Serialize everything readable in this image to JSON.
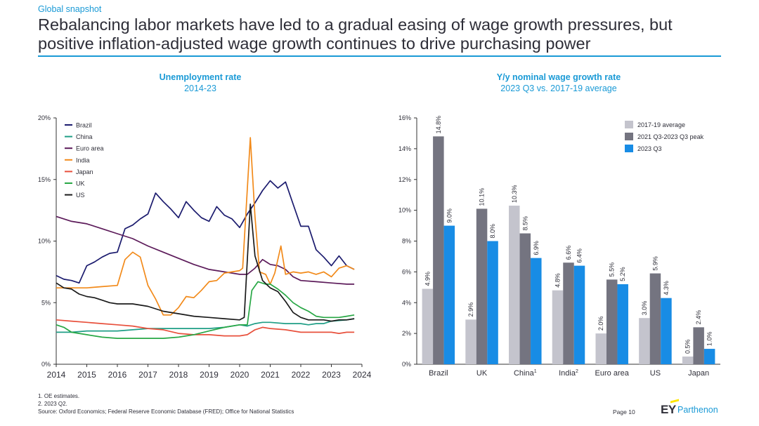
{
  "header": {
    "kicker": "Global snapshot",
    "title_line1": "Rebalancing labor markets have led to a gradual easing of wage growth pressures, but",
    "title_line2": "positive inflation-adjusted wage growth continues to drive purchasing power",
    "accent_color": "#1a9ad6"
  },
  "chart_data": [
    {
      "type": "line",
      "title": "Unemployment rate",
      "subtitle": "2014-23",
      "xlabel": "",
      "ylabel": "",
      "xlim": [
        2014,
        2024
      ],
      "ylim": [
        0,
        20
      ],
      "x_ticks": [
        "2014",
        "2015",
        "2016",
        "2017",
        "2018",
        "2019",
        "2020",
        "2021",
        "2022",
        "2023",
        "2024"
      ],
      "y_ticks": [
        "0%",
        "5%",
        "10%",
        "15%",
        "20%"
      ],
      "legend_position": "top-left",
      "series": [
        {
          "name": "Brazil",
          "color": "#1b1b6e",
          "points": [
            [
              2014,
              7.2
            ],
            [
              2014.25,
              6.9
            ],
            [
              2014.5,
              6.8
            ],
            [
              2014.75,
              6.6
            ],
            [
              2015,
              8
            ],
            [
              2015.25,
              8.3
            ],
            [
              2015.5,
              8.7
            ],
            [
              2015.75,
              9
            ],
            [
              2016,
              9.1
            ],
            [
              2016.25,
              11
            ],
            [
              2016.5,
              11.3
            ],
            [
              2016.75,
              11.8
            ],
            [
              2017,
              12.2
            ],
            [
              2017.25,
              13.9
            ],
            [
              2017.5,
              13.2
            ],
            [
              2017.75,
              12.6
            ],
            [
              2018,
              11.9
            ],
            [
              2018.25,
              13.2
            ],
            [
              2018.5,
              12.5
            ],
            [
              2018.75,
              11.9
            ],
            [
              2019,
              11.6
            ],
            [
              2019.25,
              12.8
            ],
            [
              2019.5,
              12.1
            ],
            [
              2019.75,
              11.8
            ],
            [
              2020,
              11.1
            ],
            [
              2020.25,
              12.2
            ],
            [
              2020.5,
              13.1
            ],
            [
              2020.75,
              14.1
            ],
            [
              2021,
              14.9
            ],
            [
              2021.25,
              14.3
            ],
            [
              2021.5,
              14.8
            ],
            [
              2021.75,
              13
            ],
            [
              2022,
              11.2
            ],
            [
              2022.25,
              11.2
            ],
            [
              2022.5,
              9.3
            ],
            [
              2022.75,
              8.7
            ],
            [
              2023,
              8
            ],
            [
              2023.25,
              8.8
            ],
            [
              2023.5,
              8
            ],
            [
              2023.75,
              7.7
            ]
          ]
        },
        {
          "name": "China",
          "color": "#1f9e86",
          "points": [
            [
              2014,
              2.6
            ],
            [
              2014.5,
              2.6
            ],
            [
              2015,
              2.7
            ],
            [
              2015.5,
              2.7
            ],
            [
              2016,
              2.7
            ],
            [
              2016.5,
              2.8
            ],
            [
              2017,
              2.9
            ],
            [
              2017.5,
              2.9
            ],
            [
              2018,
              2.9
            ],
            [
              2018.5,
              2.9
            ],
            [
              2019,
              2.9
            ],
            [
              2019.5,
              3
            ],
            [
              2020,
              3.2
            ],
            [
              2020.25,
              3.1
            ],
            [
              2020.5,
              3.3
            ],
            [
              2020.75,
              3.4
            ],
            [
              2021,
              3.4
            ],
            [
              2021.5,
              3.3
            ],
            [
              2022,
              3.3
            ],
            [
              2022.25,
              3.2
            ],
            [
              2022.5,
              3.3
            ],
            [
              2022.75,
              3.3
            ],
            [
              2023,
              3.5
            ],
            [
              2023.5,
              3.6
            ],
            [
              2023.75,
              3.7
            ]
          ]
        },
        {
          "name": "Euro area",
          "color": "#5c1b5a",
          "points": [
            [
              2014,
              12
            ],
            [
              2014.5,
              11.6
            ],
            [
              2015,
              11.4
            ],
            [
              2015.5,
              11
            ],
            [
              2016,
              10.6
            ],
            [
              2016.5,
              10.2
            ],
            [
              2017,
              9.6
            ],
            [
              2017.5,
              9.1
            ],
            [
              2018,
              8.6
            ],
            [
              2018.5,
              8.1
            ],
            [
              2019,
              7.7
            ],
            [
              2019.5,
              7.5
            ],
            [
              2020,
              7.3
            ],
            [
              2020.25,
              7.3
            ],
            [
              2020.5,
              7.8
            ],
            [
              2020.75,
              8.5
            ],
            [
              2021,
              8.1
            ],
            [
              2021.25,
              8
            ],
            [
              2021.5,
              7.7
            ],
            [
              2021.75,
              7.1
            ],
            [
              2022,
              6.8
            ],
            [
              2022.5,
              6.7
            ],
            [
              2023,
              6.6
            ],
            [
              2023.5,
              6.5
            ],
            [
              2023.75,
              6.5
            ]
          ]
        },
        {
          "name": "India",
          "color": "#f28a1a",
          "points": [
            [
              2014,
              6.2
            ],
            [
              2014.5,
              6.2
            ],
            [
              2015,
              6.2
            ],
            [
              2015.5,
              6.3
            ],
            [
              2016,
              6.4
            ],
            [
              2016.25,
              8.5
            ],
            [
              2016.5,
              9.1
            ],
            [
              2016.75,
              8.7
            ],
            [
              2017,
              6.4
            ],
            [
              2017.25,
              5.3
            ],
            [
              2017.5,
              4
            ],
            [
              2017.75,
              4
            ],
            [
              2018,
              4.6
            ],
            [
              2018.25,
              5.5
            ],
            [
              2018.5,
              5.4
            ],
            [
              2018.75,
              6
            ],
            [
              2019,
              6.7
            ],
            [
              2019.25,
              6.8
            ],
            [
              2019.5,
              7.4
            ],
            [
              2019.75,
              7.5
            ],
            [
              2020,
              7.6
            ],
            [
              2020.1,
              7.8
            ],
            [
              2020.35,
              18.4
            ],
            [
              2020.5,
              12
            ],
            [
              2020.65,
              7.5
            ],
            [
              2020.85,
              7.3
            ],
            [
              2021,
              6.5
            ],
            [
              2021.15,
              7.4
            ],
            [
              2021.35,
              9.6
            ],
            [
              2021.5,
              7.3
            ],
            [
              2021.75,
              7.5
            ],
            [
              2022,
              7.4
            ],
            [
              2022.25,
              7.5
            ],
            [
              2022.5,
              7.3
            ],
            [
              2022.75,
              7.5
            ],
            [
              2023,
              7.1
            ],
            [
              2023.25,
              7.8
            ],
            [
              2023.5,
              8
            ],
            [
              2023.75,
              7.7
            ]
          ]
        },
        {
          "name": "Japan",
          "color": "#e8503c",
          "points": [
            [
              2014,
              3.6
            ],
            [
              2014.5,
              3.5
            ],
            [
              2015,
              3.4
            ],
            [
              2015.5,
              3.3
            ],
            [
              2016,
              3.2
            ],
            [
              2016.5,
              3.1
            ],
            [
              2017,
              2.9
            ],
            [
              2017.5,
              2.8
            ],
            [
              2018,
              2.5
            ],
            [
              2018.5,
              2.4
            ],
            [
              2019,
              2.4
            ],
            [
              2019.5,
              2.3
            ],
            [
              2020,
              2.3
            ],
            [
              2020.25,
              2.4
            ],
            [
              2020.5,
              2.8
            ],
            [
              2020.75,
              3
            ],
            [
              2021,
              2.9
            ],
            [
              2021.5,
              2.8
            ],
            [
              2022,
              2.6
            ],
            [
              2022.5,
              2.6
            ],
            [
              2023,
              2.6
            ],
            [
              2023.25,
              2.5
            ],
            [
              2023.5,
              2.6
            ],
            [
              2023.75,
              2.6
            ]
          ]
        },
        {
          "name": "UK",
          "color": "#28a745",
          "points": [
            [
              2014,
              3.2
            ],
            [
              2014.25,
              3
            ],
            [
              2014.5,
              2.6
            ],
            [
              2014.75,
              2.5
            ],
            [
              2015,
              2.4
            ],
            [
              2015.5,
              2.2
            ],
            [
              2016,
              2.1
            ],
            [
              2016.5,
              2.1
            ],
            [
              2017,
              2.1
            ],
            [
              2017.5,
              2.1
            ],
            [
              2018,
              2.2
            ],
            [
              2018.5,
              2.4
            ],
            [
              2019,
              2.7
            ],
            [
              2019.5,
              3
            ],
            [
              2020,
              3.2
            ],
            [
              2020.25,
              3.2
            ],
            [
              2020.4,
              6
            ],
            [
              2020.6,
              6.7
            ],
            [
              2020.85,
              6.5
            ],
            [
              2021,
              6.5
            ],
            [
              2021.25,
              6.1
            ],
            [
              2021.5,
              5.6
            ],
            [
              2021.75,
              5
            ],
            [
              2022,
              4.6
            ],
            [
              2022.25,
              4.3
            ],
            [
              2022.5,
              3.9
            ],
            [
              2022.75,
              3.8
            ],
            [
              2023,
              3.8
            ],
            [
              2023.25,
              3.8
            ],
            [
              2023.5,
              3.9
            ],
            [
              2023.75,
              4
            ]
          ]
        },
        {
          "name": "US",
          "color": "#1a1a1a",
          "points": [
            [
              2014,
              6.6
            ],
            [
              2014.25,
              6.2
            ],
            [
              2014.5,
              6.1
            ],
            [
              2014.75,
              5.7
            ],
            [
              2015,
              5.5
            ],
            [
              2015.25,
              5.4
            ],
            [
              2015.5,
              5.2
            ],
            [
              2015.75,
              5
            ],
            [
              2016,
              4.9
            ],
            [
              2016.5,
              4.9
            ],
            [
              2017,
              4.7
            ],
            [
              2017.5,
              4.3
            ],
            [
              2018,
              4.1
            ],
            [
              2018.5,
              3.9
            ],
            [
              2019,
              3.8
            ],
            [
              2019.5,
              3.7
            ],
            [
              2020,
              3.6
            ],
            [
              2020.15,
              3.8
            ],
            [
              2020.35,
              13
            ],
            [
              2020.5,
              8.8
            ],
            [
              2020.75,
              6.8
            ],
            [
              2021,
              6.2
            ],
            [
              2021.25,
              5.9
            ],
            [
              2021.5,
              5.1
            ],
            [
              2021.75,
              4.2
            ],
            [
              2022,
              3.8
            ],
            [
              2022.25,
              3.6
            ],
            [
              2022.5,
              3.6
            ],
            [
              2022.75,
              3.6
            ],
            [
              2023,
              3.5
            ],
            [
              2023.25,
              3.6
            ],
            [
              2023.5,
              3.6
            ],
            [
              2023.75,
              3.7
            ]
          ]
        }
      ]
    },
    {
      "type": "bar",
      "title": "Y/y nominal wage growth rate",
      "subtitle": "2023 Q3 vs. 2017-19 average",
      "xlabel": "",
      "ylabel": "",
      "ylim": [
        0,
        16
      ],
      "y_ticks": [
        "0%",
        "2%",
        "4%",
        "6%",
        "8%",
        "10%",
        "12%",
        "14%",
        "16%"
      ],
      "legend_position": "top-right",
      "categories": [
        "Brazil",
        "UK",
        "China",
        "India",
        "Euro area",
        "US",
        "Japan"
      ],
      "category_superscripts": [
        "",
        "",
        "1",
        "2",
        "",
        "",
        ""
      ],
      "series": [
        {
          "name": "2017-19 average",
          "color": "#c4c4cd",
          "values": [
            4.9,
            2.9,
            10.3,
            4.8,
            2.0,
            3.0,
            0.5
          ],
          "labels": [
            "4.9%",
            "2.9%",
            "10.3%",
            "4.8%",
            "2.0%",
            "3.0%",
            "0.5%"
          ]
        },
        {
          "name": "2021 Q3-2023 Q3 peak",
          "color": "#747480",
          "values": [
            14.8,
            10.1,
            8.5,
            6.6,
            5.5,
            5.9,
            2.4
          ],
          "labels": [
            "14.8%",
            "10.1%",
            "8.5%",
            "6.6%",
            "5.5%",
            "5.9%",
            "2.4%"
          ]
        },
        {
          "name": "2023 Q3",
          "color": "#188ce5",
          "values": [
            9.0,
            8.0,
            6.9,
            6.4,
            5.2,
            4.3,
            1.0
          ],
          "labels": [
            "9.0%",
            "8.0%",
            "6.9%",
            "6.4%",
            "5.2%",
            "4.3%",
            "1.0%"
          ]
        }
      ]
    }
  ],
  "footnotes": {
    "note1": "1.   OE estimates.",
    "note2": "2.   2023 Q2.",
    "source": "Source: Oxford Economics; Federal Reserve Economic Database (FRED); Office for National Statistics"
  },
  "page_number": "Page 10",
  "brand": {
    "ey": "EY",
    "name": "Parthenon"
  }
}
